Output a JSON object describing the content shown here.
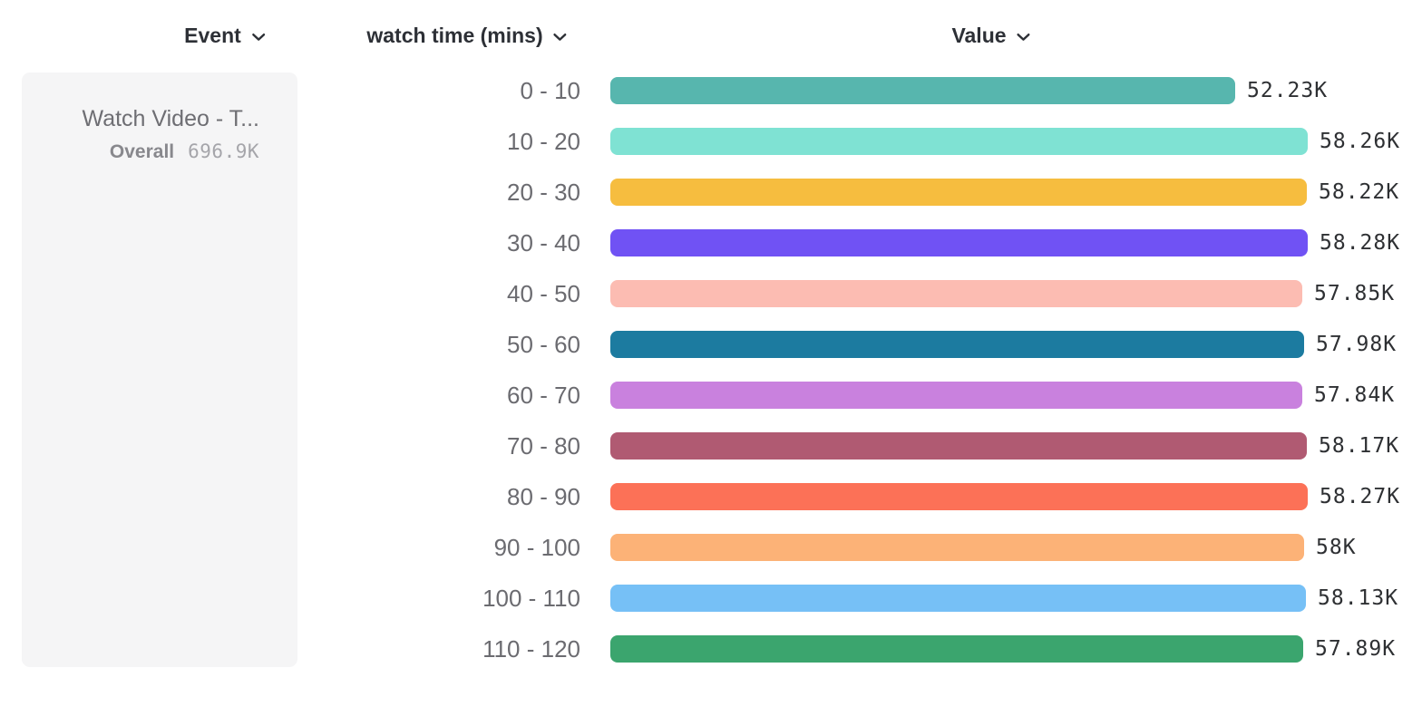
{
  "header": {
    "columns": [
      {
        "id": "event",
        "label": "Event",
        "icon": "chevron-down-icon"
      },
      {
        "id": "breakdown",
        "label": "watch time (mins)",
        "icon": "chevron-down-icon"
      },
      {
        "id": "value",
        "label": "Value",
        "icon": "chevron-down-icon"
      }
    ]
  },
  "event_card": {
    "title": "Watch Video - T...",
    "overall_label": "Overall",
    "overall_value": "696.9K"
  },
  "chart_data": {
    "type": "bar",
    "orientation": "horizontal",
    "title": "",
    "xlabel": "Value",
    "ylabel": "watch time (mins)",
    "grid": false,
    "legend": "none",
    "xlim": [
      0,
      58280
    ],
    "categories": [
      "0 - 10",
      "10 - 20",
      "20 - 30",
      "30 - 40",
      "40 - 50",
      "50 - 60",
      "60 - 70",
      "70 - 80",
      "80 - 90",
      "90 - 100",
      "100 - 110",
      "110 - 120"
    ],
    "values": [
      52230,
      58260,
      58220,
      58280,
      57850,
      57980,
      57840,
      58170,
      58270,
      58000,
      58130,
      57890
    ],
    "value_labels": [
      "52.23K",
      "58.26K",
      "58.22K",
      "58.28K",
      "57.85K",
      "57.98K",
      "57.84K",
      "58.17K",
      "58.27K",
      "58K",
      "58.13K",
      "57.89K"
    ],
    "colors": [
      "#57b6ae",
      "#7fe2d3",
      "#f6bd3f",
      "#7052f4",
      "#fcbcb2",
      "#1c7ba0",
      "#c981de",
      "#b05a72",
      "#fc7157",
      "#fcb277",
      "#76c0f6",
      "#3ba56e"
    ]
  }
}
